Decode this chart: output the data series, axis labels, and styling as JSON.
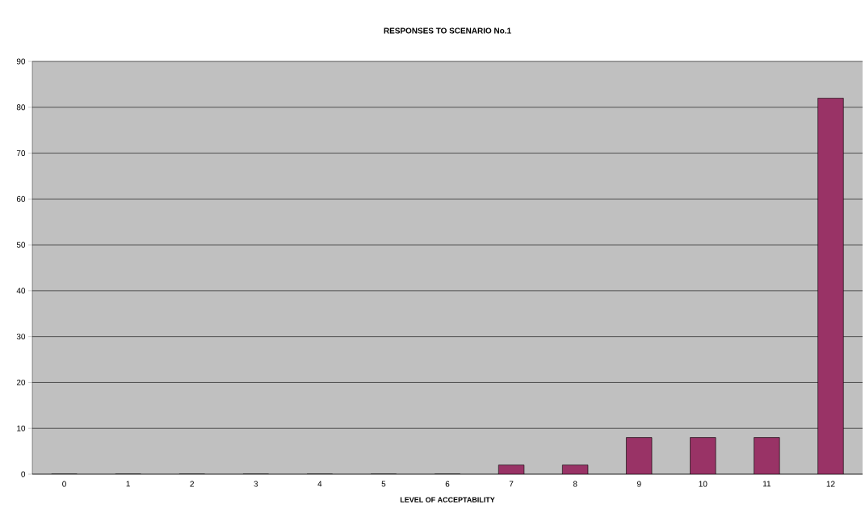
{
  "chart_data": {
    "type": "bar",
    "title": "RESPONSES TO SCENARIO No.1",
    "xlabel": "LEVEL OF ACCEPTABILITY",
    "categories": [
      "0",
      "1",
      "2",
      "3",
      "4",
      "5",
      "6",
      "7",
      "8",
      "9",
      "10",
      "11",
      "12"
    ],
    "values": [
      0,
      0,
      0,
      0,
      0,
      0,
      0,
      2,
      2,
      8,
      8,
      8,
      82
    ],
    "color": "#993366",
    "ylim": [
      0,
      90
    ],
    "yticks": [
      0,
      10,
      20,
      30,
      40,
      50,
      60,
      70,
      80,
      90
    ],
    "grid": "y"
  }
}
